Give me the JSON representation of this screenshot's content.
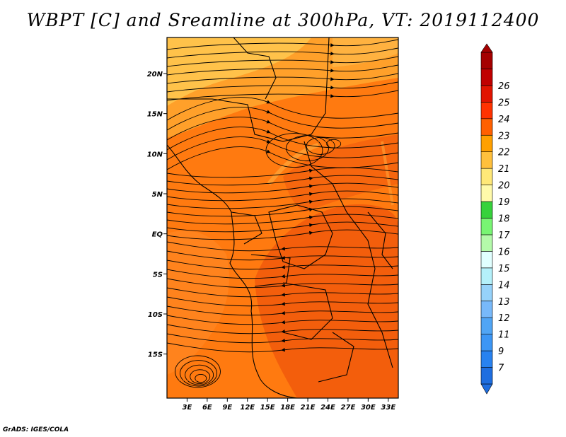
{
  "title": "WBPT [C] and Sreamline at 300hPa, VT: 2019112400",
  "credit": "GrADS: IGES/COLA",
  "map": {
    "lat_range": [
      -20.5,
      24.5
    ],
    "lon_range": [
      0,
      34.5
    ],
    "lat_ticks": [
      {
        "value": 20,
        "label": "20N"
      },
      {
        "value": 15,
        "label": "15N"
      },
      {
        "value": 10,
        "label": "10N"
      },
      {
        "value": 5,
        "label": "5N"
      },
      {
        "value": 0,
        "label": "EQ"
      },
      {
        "value": -5,
        "label": "5S"
      },
      {
        "value": -10,
        "label": "10S"
      },
      {
        "value": -15,
        "label": "15S"
      }
    ],
    "lon_ticks": [
      {
        "value": 3,
        "label": "3E"
      },
      {
        "value": 6,
        "label": "6E"
      },
      {
        "value": 9,
        "label": "9E"
      },
      {
        "value": 12,
        "label": "12E"
      },
      {
        "value": 15,
        "label": "15E"
      },
      {
        "value": 18,
        "label": "18E"
      },
      {
        "value": 21,
        "label": "21E"
      },
      {
        "value": 24,
        "label": "24E"
      },
      {
        "value": 27,
        "label": "27E"
      },
      {
        "value": 30,
        "label": "30E"
      },
      {
        "value": 33,
        "label": "33E"
      }
    ]
  },
  "colorbar": {
    "levels": [
      {
        "label": "7",
        "color": "#1e6ee0"
      },
      {
        "label": "9",
        "color": "#2882f0"
      },
      {
        "label": "11",
        "color": "#3c96f5"
      },
      {
        "label": "12",
        "color": "#50a5f5"
      },
      {
        "label": "13",
        "color": "#78b9fa"
      },
      {
        "label": "14",
        "color": "#96d2fa"
      },
      {
        "label": "15",
        "color": "#b4f0fa"
      },
      {
        "label": "16",
        "color": "#e1ffff"
      },
      {
        "label": "17",
        "color": "#b4faaa"
      },
      {
        "label": "18",
        "color": "#78f573"
      },
      {
        "label": "19",
        "color": "#37d23c"
      },
      {
        "label": "20",
        "color": "#fffaaa"
      },
      {
        "label": "21",
        "color": "#ffe878"
      },
      {
        "label": "22",
        "color": "#ffc03c"
      },
      {
        "label": "23",
        "color": "#ffa000"
      },
      {
        "label": "24",
        "color": "#ff6000"
      },
      {
        "label": "25",
        "color": "#ff3200"
      },
      {
        "label": "26",
        "color": "#e11400"
      },
      {
        "label": "",
        "color": "#c00000"
      },
      {
        "label": "",
        "color": "#a50000"
      }
    ]
  }
}
